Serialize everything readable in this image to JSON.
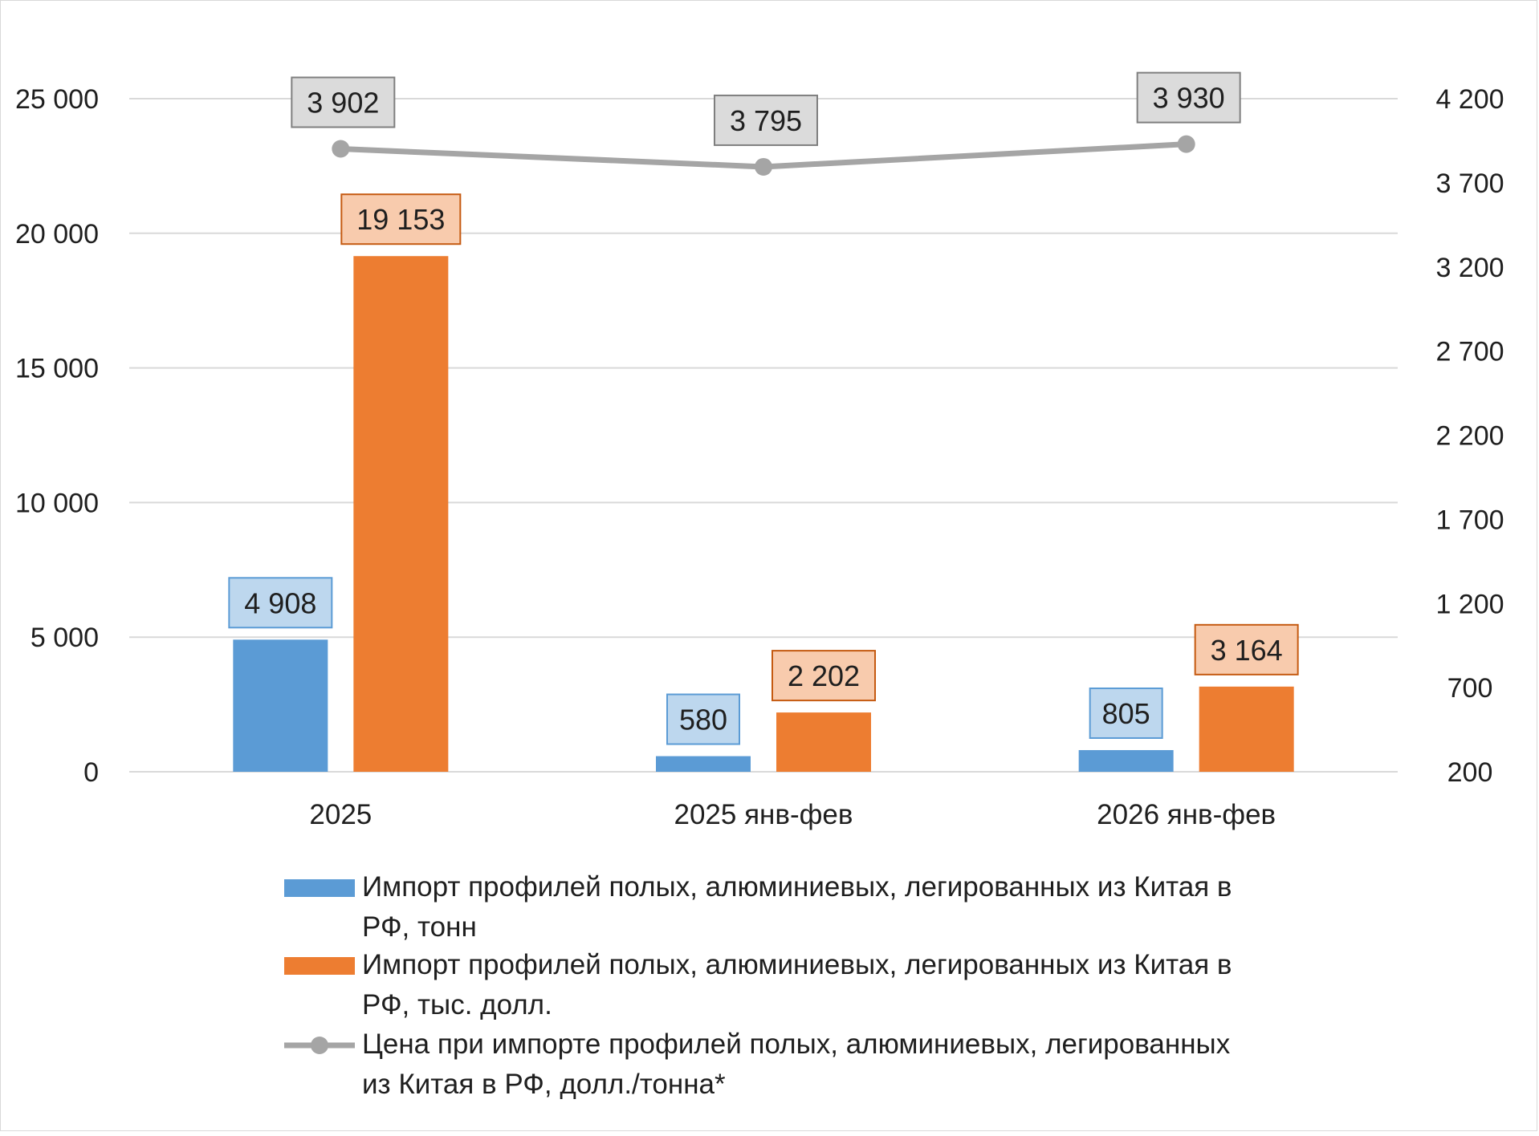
{
  "chart_data": {
    "type": "bar",
    "categories": [
      "2025",
      "2025 янв-фев",
      "2026 янв-фев"
    ],
    "series": [
      {
        "name": "Импорт профилей полых, алюминиевых, легированных из Китая в РФ, тонн",
        "legend_lines": [
          "Импорт профилей полых, алюминиевых, легированных из Китая в",
          "РФ, тонн"
        ],
        "kind": "bar",
        "axis": "left",
        "color": "#5b9bd5",
        "label_fill": "#bdd7ee",
        "label_stroke": "#5b9bd5",
        "values": [
          4908,
          580,
          805
        ],
        "labels": [
          "4 908",
          "580",
          "805"
        ]
      },
      {
        "name": "Импорт профилей полых, алюминиевых, легированных из Китая в РФ, тыс. долл.",
        "legend_lines": [
          "Импорт профилей полых, алюминиевых, легированных из Китая в",
          "РФ, тыс. долл."
        ],
        "kind": "bar",
        "axis": "left",
        "color": "#ed7d31",
        "label_fill": "#f8cbad",
        "label_stroke": "#c55a11",
        "values": [
          19153,
          2202,
          3164
        ],
        "labels": [
          "19 153",
          "2 202",
          "3 164"
        ]
      },
      {
        "name": "Цена при импорте профилей полых, алюминиевых, легированных из Китая в РФ, долл./тонна*",
        "legend_lines": [
          "Цена при импорте профилей полых, алюминиевых, легированных",
          "из Китая в РФ, долл./тонна*"
        ],
        "kind": "line",
        "axis": "right",
        "color": "#a5a5a5",
        "label_fill": "#dbdbdb",
        "label_stroke": "#7f7f7f",
        "values": [
          3902,
          3795,
          3930
        ],
        "labels": [
          "3 902",
          "3 795",
          "3 930"
        ]
      }
    ],
    "y_left": {
      "ylim": [
        0,
        25000
      ],
      "ticks": [
        0,
        5000,
        10000,
        15000,
        20000,
        25000
      ],
      "tick_labels": [
        "0",
        "5 000",
        "10 000",
        "15 000",
        "20 000",
        "25 000"
      ]
    },
    "y_right": {
      "ylim": [
        200,
        4200
      ],
      "ticks": [
        200,
        700,
        1200,
        1700,
        2200,
        2700,
        3200,
        3700,
        4200
      ],
      "tick_labels": [
        "200",
        "700",
        "1 200",
        "1 700",
        "2 200",
        "2 700",
        "3 200",
        "3 700",
        "4 200"
      ]
    },
    "grid": true,
    "legend_position": "bottom"
  }
}
